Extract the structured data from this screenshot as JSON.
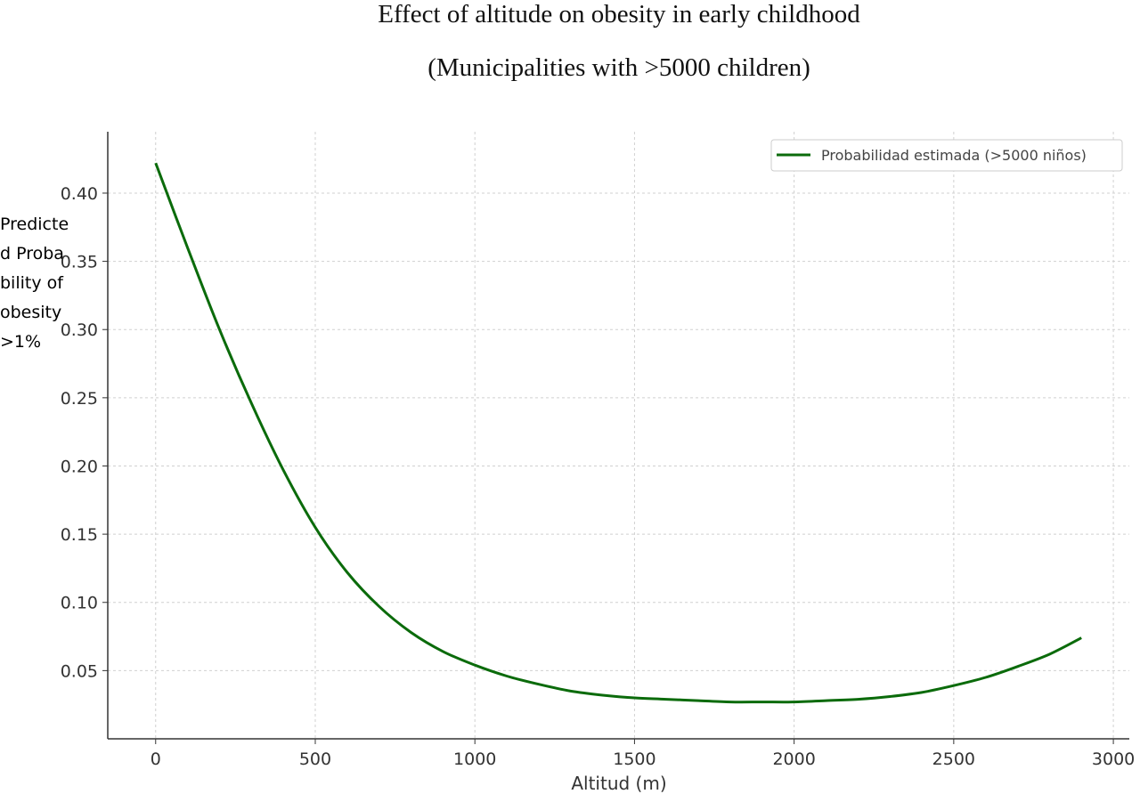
{
  "chart_data": {
    "type": "line",
    "title": "Effect of altitude on obesity in early childhood",
    "subtitle": "(Municipalities with >5000 children)",
    "xlabel": "Altitud (m)",
    "ylabel": "Predicted Probability of obesity >1%",
    "xlim": [
      -150,
      3050
    ],
    "ylim": [
      0.0,
      0.445
    ],
    "xticks": [
      0,
      500,
      1000,
      1500,
      2000,
      2500,
      3000
    ],
    "xtick_labels": [
      "0",
      "500",
      "1000",
      "1500",
      "2000",
      "2500",
      "3000"
    ],
    "yticks": [
      0.05,
      0.1,
      0.15,
      0.2,
      0.25,
      0.3,
      0.35,
      0.4
    ],
    "ytick_labels": [
      "0.05",
      "0.10",
      "0.15",
      "0.20",
      "0.25",
      "0.30",
      "0.35",
      "0.40"
    ],
    "grid": true,
    "legend_position": "top-right",
    "series": [
      {
        "name": "Probabilidad estimada (>5000 niños)",
        "color": "#0b6b0b",
        "x": [
          0,
          100,
          200,
          300,
          400,
          500,
          600,
          700,
          800,
          900,
          1000,
          1100,
          1200,
          1300,
          1400,
          1500,
          1600,
          1700,
          1800,
          1900,
          2000,
          2100,
          2200,
          2300,
          2400,
          2500,
          2600,
          2700,
          2800,
          2900
        ],
        "y": [
          0.422,
          0.36,
          0.3,
          0.246,
          0.197,
          0.155,
          0.122,
          0.097,
          0.078,
          0.064,
          0.054,
          0.046,
          0.04,
          0.035,
          0.032,
          0.03,
          0.029,
          0.028,
          0.027,
          0.027,
          0.027,
          0.028,
          0.029,
          0.031,
          0.034,
          0.039,
          0.045,
          0.053,
          0.062,
          0.074
        ]
      }
    ]
  }
}
